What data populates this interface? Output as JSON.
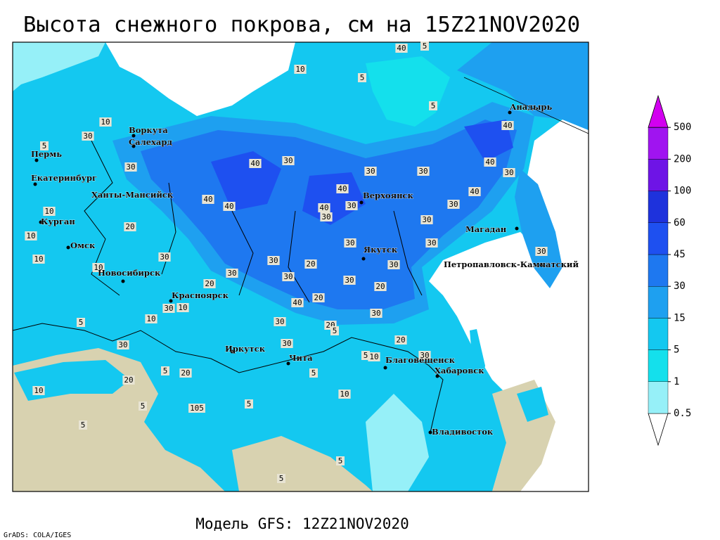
{
  "title": "Высота снежного покрова, см на 15Z21NOV2020",
  "footer": "Модель GFS: 12Z21NOV2020",
  "credit": "GrADS: COLA/IGES",
  "legend": {
    "levels": [
      0.5,
      1,
      5,
      15,
      30,
      45,
      60,
      100,
      200,
      500
    ],
    "colors": [
      "#ffffff",
      "#96f0f8",
      "#14e0ec",
      "#14c8f0",
      "#1ea0f0",
      "#1e78f0",
      "#1e50f0",
      "#1e32dc",
      "#6e14e6",
      "#a014f0",
      "#d200f0"
    ]
  },
  "cities": [
    "Воркута",
    "Салехард",
    "Пермь",
    "Екатеринбург",
    "Ханты-Мансийск",
    "Курган",
    "Омск",
    "Новосибирск",
    "Красноярск",
    "Иркутск",
    "Чита",
    "Благовещенск",
    "Хабаровск",
    "Владивосток",
    "Якутск",
    "Верхоянск",
    "Магадан",
    "Петропавловск-Камчатский",
    "Анадырь"
  ],
  "contour_labels": [
    40,
    5,
    10,
    5,
    5,
    10,
    30,
    5,
    30,
    40,
    30,
    30,
    30,
    40,
    30,
    40,
    40,
    40,
    40,
    40,
    30,
    30,
    40,
    30,
    30,
    20,
    10,
    30,
    10,
    10,
    30,
    30,
    20,
    30,
    30,
    30,
    30,
    20,
    30,
    20,
    30,
    10,
    40,
    20,
    30,
    20,
    30,
    5,
    10,
    30,
    30,
    20,
    5,
    10,
    30,
    5,
    5,
    20,
    20,
    5,
    10,
    10,
    5,
    105,
    5,
    5,
    5,
    5,
    30,
    10
  ]
}
